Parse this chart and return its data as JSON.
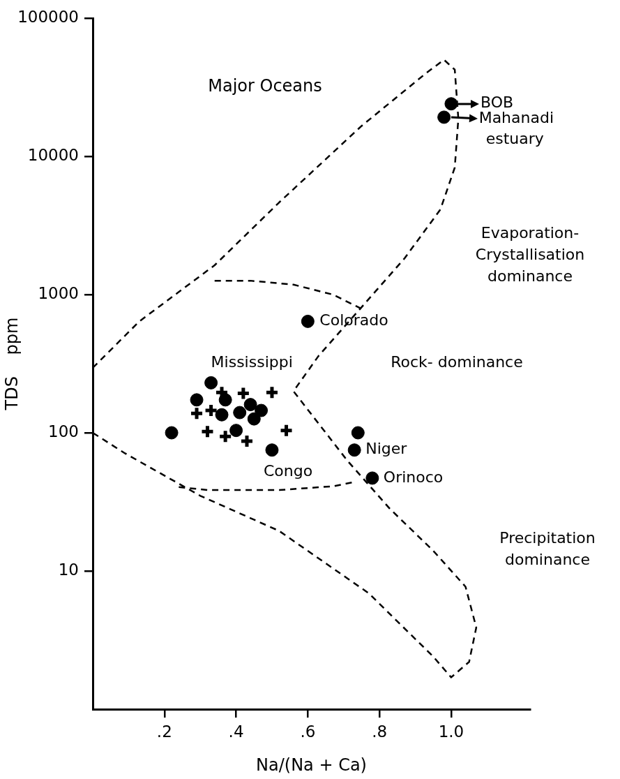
{
  "chart_data": {
    "type": "scatter",
    "xlabel": "Na/(Na + Ca)",
    "ylabel": "TDS    ppm",
    "log": "y",
    "xlim": [
      0,
      1.22
    ],
    "xticks": [
      {
        "value": 0.2,
        "label": ".2"
      },
      {
        "value": 0.4,
        "label": ".4"
      },
      {
        "value": 0.6,
        "label": ".6"
      },
      {
        "value": 0.8,
        "label": ".8"
      },
      {
        "value": 1.0,
        "label": "1.0"
      }
    ],
    "ylim": [
      1,
      100000
    ],
    "yticks": [
      10,
      100,
      1000,
      10000,
      100000
    ],
    "series": [
      {
        "type": "line",
        "line_style": "dashed",
        "marker": "none",
        "color": "#000000",
        "x": [
          0,
          0.13,
          0.34,
          0.52,
          0.75,
          0.93,
          0.98,
          1.01,
          1.02,
          1.01,
          0.97,
          0.87,
          0.75,
          0.63,
          0.56,
          0.62,
          0.71,
          0.83,
          0.95,
          1.04,
          1.07,
          1.05,
          1.0,
          0.95,
          0.77,
          0.52,
          0.3,
          0.09,
          0
        ],
        "values": [
          295,
          640,
          1630,
          4640,
          16600,
          40000,
          50000,
          42400,
          18700,
          8300,
          4130,
          1830,
          810,
          360,
          200,
          126,
          63,
          28,
          14,
          7.7,
          3.9,
          2.2,
          1.7,
          2.4,
          6.9,
          19.5,
          35,
          71,
          100
        ]
      },
      {
        "type": "line",
        "line_style": "dashed",
        "marker": "none",
        "color": "#000000",
        "x": [
          0.34,
          0.44,
          0.56,
          0.67,
          0.76
        ],
        "values": [
          1260,
          1260,
          1180,
          1000,
          765
        ]
      },
      {
        "type": "line",
        "line_style": "dashed",
        "marker": "none",
        "color": "#000000",
        "x": [
          0.24,
          0.32,
          0.52,
          0.67,
          0.73
        ],
        "values": [
          40.5,
          38.5,
          38.5,
          41,
          44
        ]
      },
      {
        "type": "scatter",
        "marker": "cross",
        "color": "#000000",
        "x": [
          0.5,
          0.29,
          0.33,
          0.32,
          0.37,
          0.43,
          0.54,
          0.42,
          0.36
        ],
        "values": [
          196,
          138,
          145,
          102,
          94,
          87,
          104,
          193,
          196
        ]
      },
      {
        "type": "scatter",
        "marker": "circle",
        "color": "#000000",
        "x": [
          0.22,
          0.29,
          0.37,
          0.36,
          0.44,
          0.47,
          0.41,
          0.45,
          0.4,
          0.74,
          1.0,
          0.98
        ],
        "values": [
          100,
          173,
          173,
          135,
          160,
          145,
          140,
          126,
          104,
          100,
          24000,
          19200
        ]
      },
      {
        "type": "scatter",
        "marker": "circle",
        "color": "#000000",
        "x": [
          0.6,
          0.33,
          0.5,
          0.73,
          0.78
        ],
        "values": [
          640,
          230,
          75,
          75,
          47
        ]
      }
    ],
    "annotations": [
      "Major Oceans",
      "Evaporation-\nCrystallisation\ndominance",
      "Rock- dominance",
      "Precipitation\ndominance",
      {
        "text": "Colorado",
        "x": 0.6,
        "y": 640
      },
      {
        "text": "Mississippi",
        "x": 0.33,
        "y": 230
      },
      {
        "text": "Congo",
        "x": 0.5,
        "y": 75
      },
      {
        "text": "Niger",
        "x": 0.73,
        "y": 75
      },
      {
        "text": "Orinoco",
        "x": 0.78,
        "y": 47
      },
      {
        "text": "BOB",
        "x": 1.0,
        "y": 24000
      },
      {
        "text": "Mahanadi\nestuary",
        "x": 0.98,
        "y": 19200
      }
    ]
  }
}
